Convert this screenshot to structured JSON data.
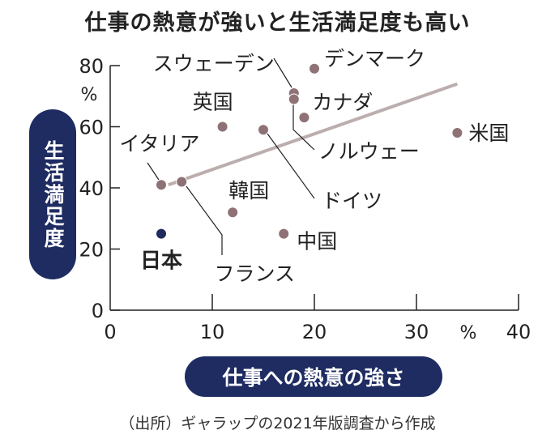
{
  "title": "仕事の熱意が強いと生活満足度も高い",
  "source": "（出所）ギャラップの2021年版調査から作成",
  "chart_data": {
    "type": "scatter",
    "title": "仕事の熱意が強いと生活満足度も高い",
    "xlabel": "仕事への熱意の強さ",
    "ylabel": "生活満足度",
    "x_unit": "%",
    "y_unit": "%",
    "xlim": [
      0,
      40
    ],
    "ylim": [
      0,
      80
    ],
    "xticks": [
      "0",
      "10",
      "20",
      "30",
      "40"
    ],
    "yticks": [
      "0",
      "20",
      "40",
      "60",
      "80"
    ],
    "grid": false,
    "points": [
      {
        "name": "デンマーク",
        "x": 20,
        "y": 79,
        "highlight": false
      },
      {
        "name": "スウェーデン",
        "x": 18,
        "y": 71,
        "highlight": false
      },
      {
        "name": "ノルウェー",
        "x": 18,
        "y": 69,
        "highlight": false
      },
      {
        "name": "カナダ",
        "x": 19,
        "y": 63,
        "highlight": false
      },
      {
        "name": "英国",
        "x": 11,
        "y": 60,
        "highlight": false
      },
      {
        "name": "ドイツ",
        "x": 15,
        "y": 59,
        "highlight": false
      },
      {
        "name": "米国",
        "x": 34,
        "y": 58,
        "highlight": false
      },
      {
        "name": "イタリア",
        "x": 5,
        "y": 41,
        "highlight": false
      },
      {
        "name": "フランス",
        "x": 7,
        "y": 42,
        "highlight": false
      },
      {
        "name": "韓国",
        "x": 12,
        "y": 32,
        "highlight": false
      },
      {
        "name": "中国",
        "x": 17,
        "y": 25,
        "highlight": false
      },
      {
        "name": "日本",
        "x": 5,
        "y": 25,
        "highlight": true
      }
    ],
    "trendline": {
      "x": [
        5.7,
        34
      ],
      "y": [
        41,
        74
      ]
    },
    "colors": {
      "point": "#8e7276",
      "highlight": "#1f2a5e",
      "trend": "#bcaeae",
      "pill": "#1e2c62"
    }
  }
}
